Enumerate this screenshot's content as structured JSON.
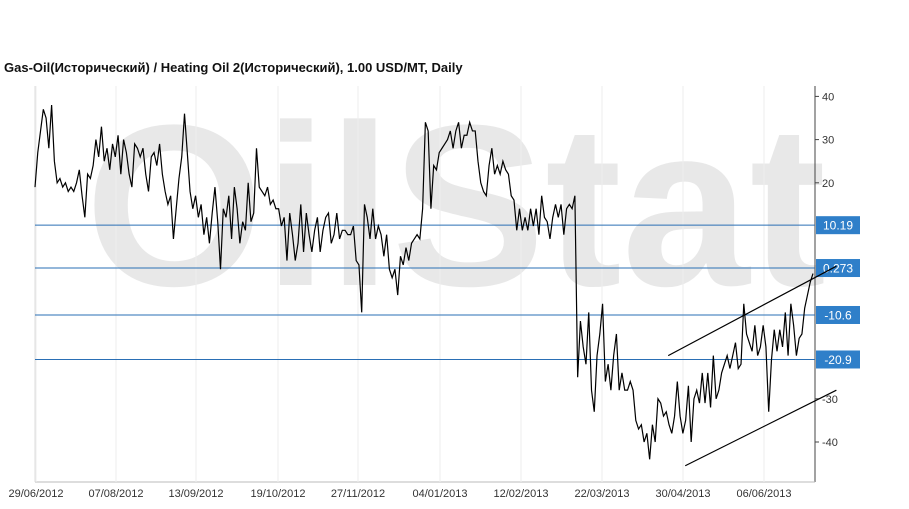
{
  "title": "Gas-Oil(Исторический) / Heating Oil 2(Исторический), 1.00 USD/MT, Daily",
  "watermark_text": "OilStat",
  "chart_data": {
    "type": "line",
    "title": "Gas-Oil(Исторический) / Heating Oil 2(Исторический), 1.00 USD/MT, Daily",
    "xlabel": "",
    "ylabel": "",
    "ylim": [
      -48,
      42
    ],
    "x_ticks": [
      "29/06/2012",
      "07/08/2012",
      "13/09/2012",
      "19/10/2012",
      "27/11/2012",
      "04/01/2013",
      "12/02/2013",
      "22/03/2013",
      "30/04/2013",
      "06/06/2013"
    ],
    "y_ticks": [
      40,
      30,
      20,
      -30,
      -40
    ],
    "grid": false,
    "levels": [
      {
        "label": "10.19",
        "value": 10.19
      },
      {
        "label": "0.273",
        "value": 0.273
      },
      {
        "label": "-10.6",
        "value": -10.6
      },
      {
        "label": "-20.9",
        "value": -20.9
      }
    ],
    "series": [
      {
        "values": [
          19,
          27,
          32,
          37,
          35,
          28,
          38,
          25,
          20,
          21,
          19,
          20,
          18,
          19,
          18,
          20,
          23,
          17,
          12,
          22,
          21,
          24,
          30,
          26,
          33,
          25,
          28,
          23,
          29,
          26,
          31,
          22,
          30,
          27,
          22,
          19,
          29,
          28,
          26,
          28,
          22,
          18,
          26,
          27,
          24,
          29,
          22,
          18,
          15,
          17,
          7,
          14,
          21,
          26,
          36,
          27,
          18,
          14,
          17,
          12,
          15,
          8,
          12,
          6,
          13,
          19,
          11,
          0,
          14,
          12,
          17,
          7,
          19,
          14,
          6,
          11,
          9,
          20,
          11,
          13,
          28,
          19,
          18,
          17,
          19,
          15,
          16,
          14,
          14,
          10,
          12,
          2,
          13,
          8,
          2,
          6,
          15,
          4,
          13,
          8,
          4,
          9,
          12,
          4,
          9,
          12,
          13,
          6,
          8,
          13,
          7,
          9,
          9,
          8,
          8,
          10,
          2,
          1,
          -10,
          15,
          12,
          7,
          14,
          7,
          10,
          8,
          3,
          8,
          0,
          -2,
          0,
          -6,
          3,
          1,
          5,
          2,
          6,
          7,
          8,
          7,
          14,
          34,
          32,
          14,
          24,
          23,
          27,
          28,
          29,
          30,
          32,
          28,
          32,
          34,
          28,
          31,
          31,
          34,
          32,
          32,
          25,
          20,
          18,
          17,
          24,
          28,
          22,
          24,
          22,
          25,
          23,
          22,
          17,
          16,
          9,
          14,
          9,
          12,
          9,
          14,
          10,
          14,
          8,
          17,
          12,
          11,
          7,
          12,
          15,
          12,
          15,
          8,
          14,
          15,
          14,
          17,
          -25,
          -12,
          -18,
          -22,
          -10,
          -28,
          -33,
          -20,
          -15,
          -8,
          -26,
          -22,
          -28,
          -20,
          -15,
          -28,
          -24,
          -28,
          -28,
          -26,
          -28,
          -35,
          -37,
          -36,
          -40,
          -38,
          -44,
          -36,
          -40,
          -30,
          -31,
          -34,
          -33,
          -36,
          -38,
          -34,
          -26,
          -34,
          -38,
          -35,
          -27,
          -40,
          -30,
          -28,
          -31,
          -24,
          -31,
          -24,
          -32,
          -20,
          -30,
          -28,
          -24,
          -22,
          -20,
          -23,
          -20,
          -17,
          -23,
          -22,
          -8,
          -15,
          -17,
          -19,
          -13,
          -20,
          -18,
          -13,
          -18,
          -33,
          -21,
          -14,
          -19,
          -14,
          -18,
          -10,
          -20,
          -8,
          -13,
          -20,
          -16,
          -15,
          -9,
          -6,
          -3,
          -1
        ]
      }
    ],
    "channel_lines": [
      {
        "from": {
          "x": "22/04/2013",
          "y": -20
        },
        "to": {
          "x": "10/07/2013",
          "y": 0.7
        }
      },
      {
        "from": {
          "x": "30/04/2013",
          "y": -45.5
        },
        "to": {
          "x": "10/07/2013",
          "y": -28
        }
      }
    ]
  }
}
